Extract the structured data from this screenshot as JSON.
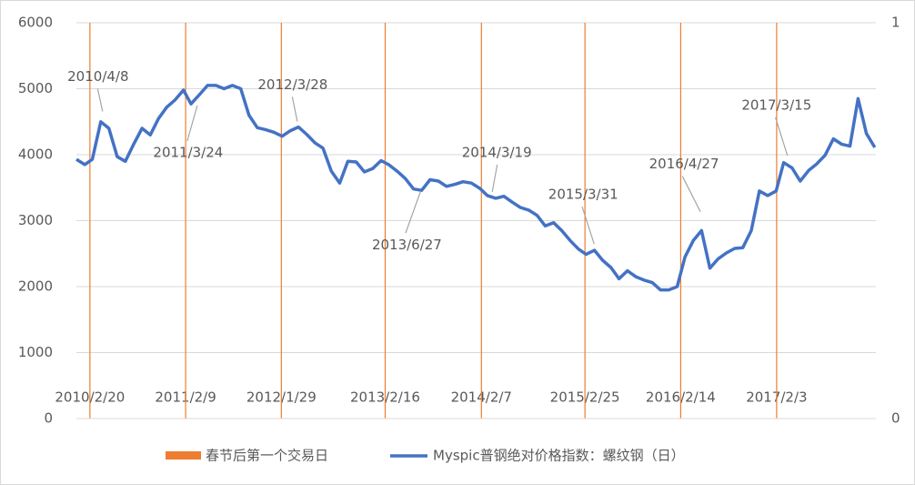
{
  "chart_data": {
    "type": "line",
    "series": [
      {
        "name": "春节后第一个交易日",
        "type": "bar",
        "axis": "y2",
        "color": "#ed7d31",
        "x": [
          "2010/2/20",
          "2011/2/9",
          "2012/1/29",
          "2013/2/16",
          "2014/2/7",
          "2015/2/25",
          "2016/2/14",
          "2017/2/3"
        ],
        "values": [
          1,
          1,
          1,
          1,
          1,
          1,
          1,
          1
        ]
      },
      {
        "name": "Myspic普钢绝对价格指数：螺纹钢（日）",
        "type": "line",
        "color": "#4472c4",
        "x": [
          "2010/1/1",
          "2010/2/1",
          "2010/3/1",
          "2010/4/1",
          "2010/5/1",
          "2010/6/1",
          "2010/7/1",
          "2010/8/1",
          "2010/9/1",
          "2010/10/1",
          "2010/11/1",
          "2010/12/1",
          "2011/1/1",
          "2011/2/1",
          "2011/3/1",
          "2011/4/1",
          "2011/5/1",
          "2011/6/1",
          "2011/7/1",
          "2011/8/1",
          "2011/9/1",
          "2011/10/1",
          "2011/11/1",
          "2011/12/1",
          "2012/1/1",
          "2012/2/1",
          "2012/3/1",
          "2012/4/1",
          "2012/5/1",
          "2012/6/1",
          "2012/7/1",
          "2012/8/1",
          "2012/9/1",
          "2012/10/1",
          "2012/11/1",
          "2012/12/1",
          "2013/1/1",
          "2013/2/1",
          "2013/3/1",
          "2013/4/1",
          "2013/5/1",
          "2013/6/1",
          "2013/7/1",
          "2013/8/1",
          "2013/9/1",
          "2013/10/1",
          "2013/11/1",
          "2013/12/1",
          "2014/1/1",
          "2014/2/1",
          "2014/3/1",
          "2014/4/1",
          "2014/5/1",
          "2014/6/1",
          "2014/7/1",
          "2014/8/1",
          "2014/9/1",
          "2014/10/1",
          "2014/11/1",
          "2014/12/1",
          "2015/1/1",
          "2015/2/1",
          "2015/3/1",
          "2015/4/1",
          "2015/5/1",
          "2015/6/1",
          "2015/7/1",
          "2015/8/1",
          "2015/9/1",
          "2015/10/1",
          "2015/11/1",
          "2015/12/1",
          "2016/1/1",
          "2016/2/1",
          "2016/3/1",
          "2016/4/1",
          "2016/5/1",
          "2016/6/1",
          "2016/7/1",
          "2016/8/1",
          "2016/9/1",
          "2016/10/1",
          "2016/11/1",
          "2016/12/1",
          "2017/1/1",
          "2017/2/1",
          "2017/3/1",
          "2017/4/1",
          "2017/5/1",
          "2017/6/1",
          "2017/7/1",
          "2017/8/1",
          "2017/9/1",
          "2017/10/1",
          "2017/11/1",
          "2017/12/1",
          "2018/1/1",
          "2018/2/1"
        ],
        "values": [
          3930,
          3850,
          3930,
          4500,
          4400,
          3970,
          3900,
          4160,
          4400,
          4300,
          4550,
          4720,
          4830,
          4980,
          4770,
          4910,
          5050,
          5050,
          5000,
          5050,
          5000,
          4600,
          4410,
          4380,
          4340,
          4280,
          4360,
          4420,
          4310,
          4180,
          4100,
          3750,
          3570,
          3900,
          3890,
          3740,
          3790,
          3910,
          3850,
          3750,
          3640,
          3480,
          3460,
          3620,
          3600,
          3520,
          3550,
          3590,
          3570,
          3490,
          3380,
          3340,
          3370,
          3280,
          3200,
          3160,
          3080,
          2920,
          2970,
          2850,
          2700,
          2570,
          2490,
          2550,
          2400,
          2290,
          2120,
          2240,
          2150,
          2100,
          2060,
          1950,
          1950,
          2000,
          2450,
          2700,
          2850,
          2280,
          2420,
          2510,
          2580,
          2590,
          2850,
          3450,
          3380,
          3450,
          3880,
          3800,
          3600,
          3760,
          3860,
          3990,
          4240,
          4160,
          4130,
          4850,
          4320,
          4110
        ]
      }
    ],
    "xlim": [
      "2010/1/1",
      "2018/2/5"
    ],
    "xticks": [
      "2010/2/20",
      "2011/2/9",
      "2012/1/29",
      "2013/2/16",
      "2014/2/7",
      "2015/2/25",
      "2016/2/14",
      "2017/2/3"
    ],
    "ylim": [
      0,
      6000
    ],
    "yticks": [
      0,
      1000,
      2000,
      3000,
      4000,
      5000,
      6000
    ],
    "y2lim": [
      0,
      1
    ],
    "y2ticks": [
      0,
      1
    ],
    "grid": true,
    "legend": "bottom",
    "annotations": [
      {
        "text": "2010/4/8",
        "x": "2010/4/8",
        "y": 4600
      },
      {
        "text": "2011/3/24",
        "x": "2011/3/24",
        "y": 4800
      },
      {
        "text": "2012/3/28",
        "x": "2012/3/28",
        "y": 4450
      },
      {
        "text": "2013/6/27",
        "x": "2013/6/27",
        "y": 3500
      },
      {
        "text": "2014/3/19",
        "x": "2014/3/19",
        "y": 3380
      },
      {
        "text": "2015/3/31",
        "x": "2015/3/31",
        "y": 2590
      },
      {
        "text": "2016/4/27",
        "x": "2016/4/27",
        "y": 3080
      },
      {
        "text": "2017/3/15",
        "x": "2017/3/15",
        "y": 3930
      }
    ]
  }
}
